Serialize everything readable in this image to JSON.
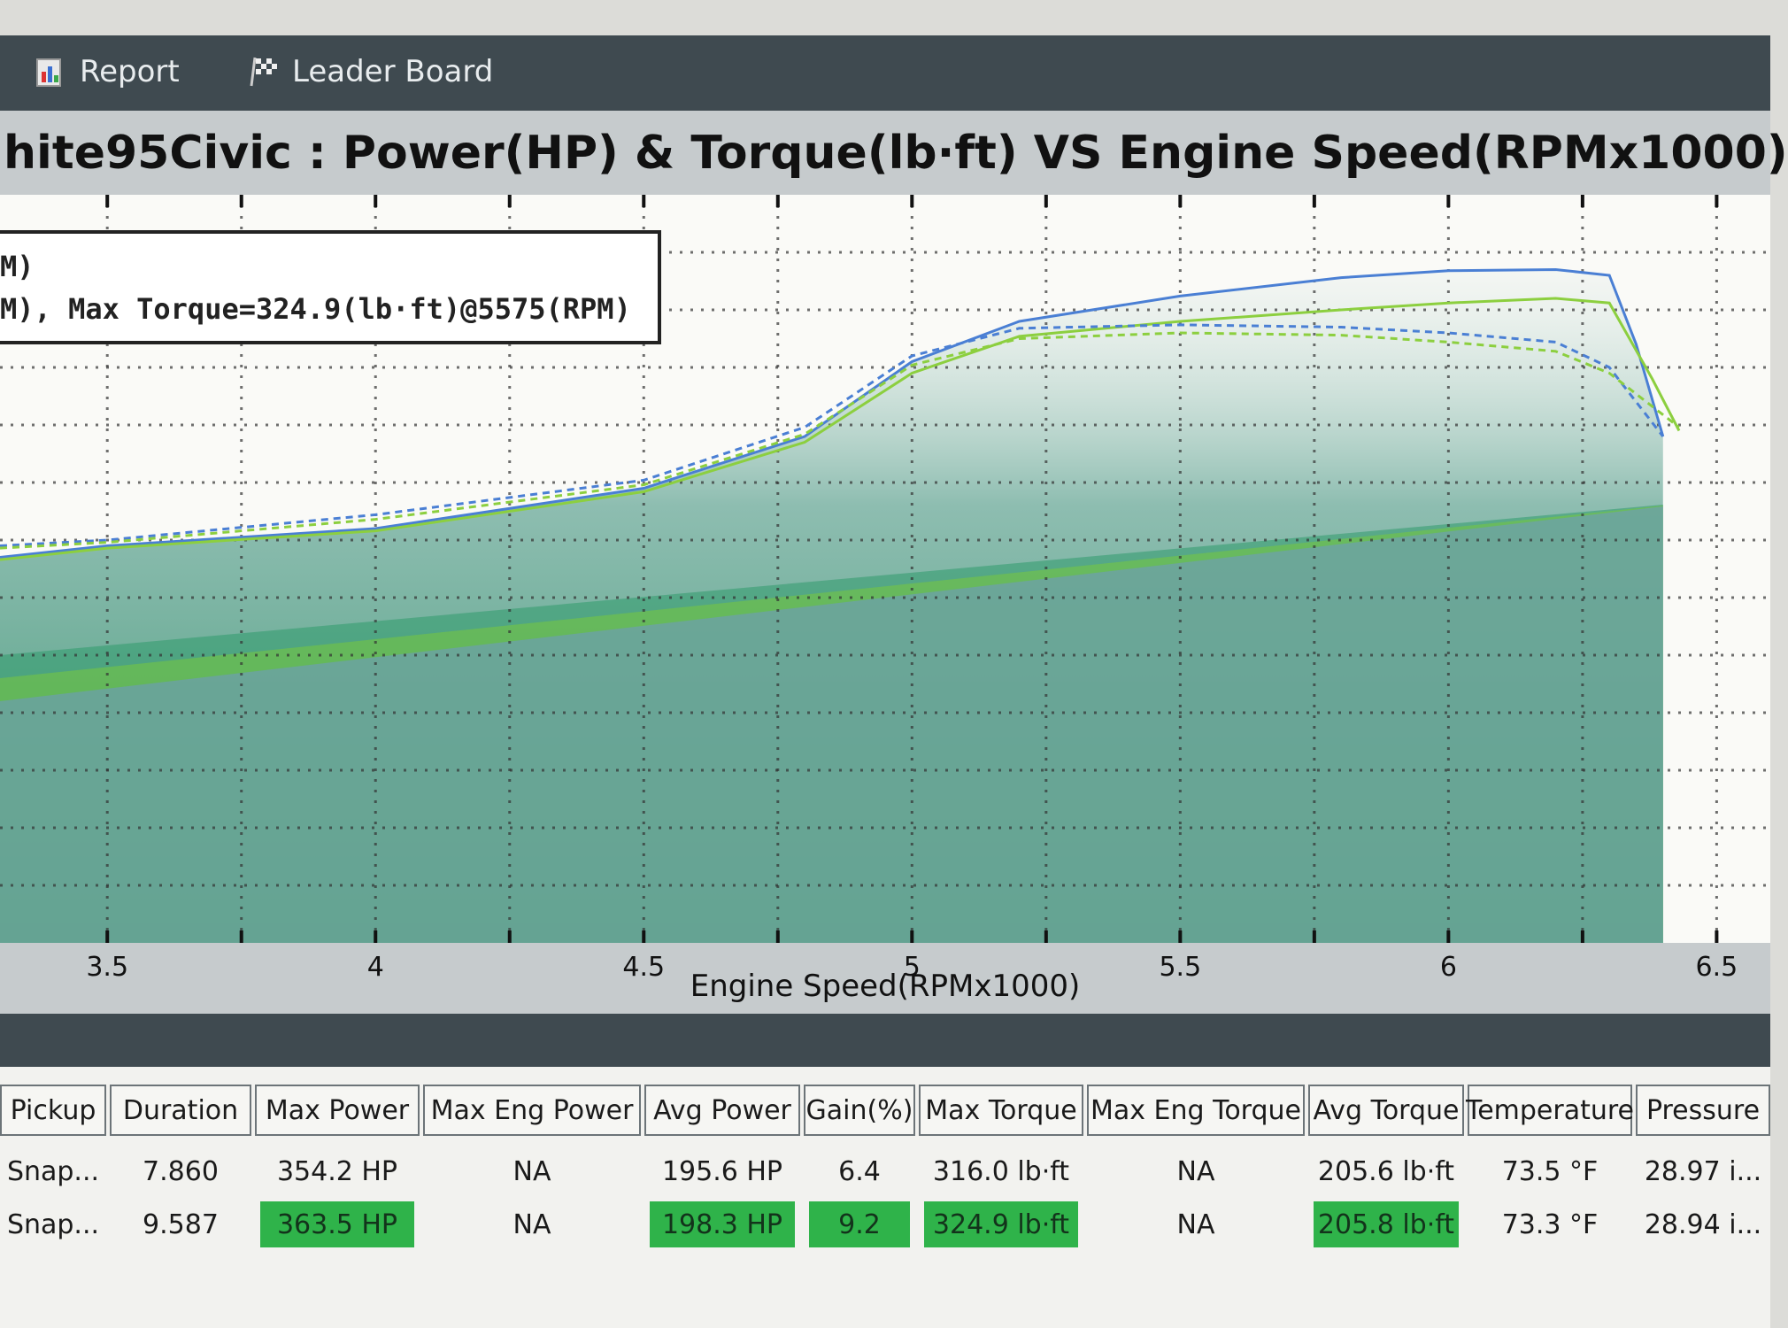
{
  "tabs": [
    {
      "label": "Report",
      "icon": "report-icon"
    },
    {
      "label": "Leader Board",
      "icon": "checkered-flag-icon"
    }
  ],
  "chart_data": {
    "type": "line",
    "title": "hite95Civic : Power(HP) & Torque(lb·ft) VS Engine Speed(RPMx1000)",
    "xlabel": "Engine Speed(RPMx1000)",
    "ylabel": "",
    "xlim": [
      3.3,
      6.6
    ],
    "x_ticks": [
      "3.5",
      "4",
      "4.5",
      "5",
      "5.5",
      "6",
      "6.5"
    ],
    "grid": true,
    "legend_lines": [
      "M)",
      "M), Max Torque=324.9(lb·ft)@5575(RPM)"
    ],
    "series": [
      {
        "color": "#4a7fd4",
        "style": "solid",
        "x": [
          3.3,
          3.5,
          4.0,
          4.5,
          4.8,
          5.0,
          5.2,
          5.5,
          5.8,
          6.0,
          6.2,
          6.3,
          6.35,
          6.4
        ],
        "y": [
          335,
          345,
          360,
          395,
          440,
          505,
          540,
          562,
          578,
          584,
          585,
          580,
          520,
          440
        ]
      },
      {
        "color": "#8ccf3f",
        "style": "solid",
        "x": [
          3.3,
          3.5,
          4.0,
          4.5,
          4.8,
          5.0,
          5.2,
          5.5,
          5.8,
          6.0,
          6.2,
          6.3,
          6.38,
          6.43
        ],
        "y": [
          333,
          343,
          358,
          392,
          435,
          495,
          527,
          540,
          550,
          556,
          560,
          556,
          490,
          445
        ]
      },
      {
        "color": "#4a7fd4",
        "style": "dashed",
        "x": [
          3.3,
          3.5,
          4.0,
          4.5,
          4.8,
          5.0,
          5.2,
          5.5,
          5.8,
          6.0,
          6.2,
          6.3,
          6.4
        ],
        "y": [
          345,
          350,
          372,
          402,
          448,
          510,
          534,
          537,
          535,
          530,
          522,
          500,
          440
        ]
      },
      {
        "color": "#8ccf3f",
        "style": "dashed",
        "x": [
          3.3,
          3.5,
          4.0,
          4.5,
          4.8,
          5.0,
          5.2,
          5.5,
          5.8,
          6.0,
          6.2,
          6.3,
          6.43
        ],
        "y": [
          343,
          348,
          368,
          398,
          442,
          502,
          525,
          530,
          528,
          522,
          514,
          495,
          448
        ]
      }
    ],
    "fill_colors": [
      "#2f9a6c",
      "#79c83c",
      "#6f97c9"
    ]
  },
  "table": {
    "headers": [
      "Pickup",
      "Duration",
      "Max Power",
      "Max Eng Power",
      "Avg Power",
      "Gain(%)",
      "Max Torque",
      "Max Eng Torque",
      "Avg Torque",
      "Temperature",
      "Pressure"
    ],
    "rows": [
      {
        "pickup": "Snap...",
        "duration": "7.860",
        "max_power": "354.2 HP",
        "max_eng_power": "NA",
        "avg_power": "195.6 HP",
        "gain": "6.4",
        "max_torque": "316.0 lb·ft",
        "max_eng_torque": "NA",
        "avg_torque": "205.6 lb·ft",
        "temperature": "73.5 °F",
        "pressure": "28.97 i..."
      },
      {
        "pickup": "Snap...",
        "duration": "9.587",
        "max_power": "363.5 HP",
        "max_eng_power": "NA",
        "avg_power": "198.3 HP",
        "gain": "9.2",
        "max_torque": "324.9 lb·ft",
        "max_eng_torque": "NA",
        "avg_torque": "205.8 lb·ft",
        "temperature": "73.3 °F",
        "pressure": "28.94 i..."
      }
    ]
  },
  "colors": {
    "highlight": "#2fb34a",
    "dark_band": "#3f4a50",
    "title_band": "#c6cbcd"
  }
}
